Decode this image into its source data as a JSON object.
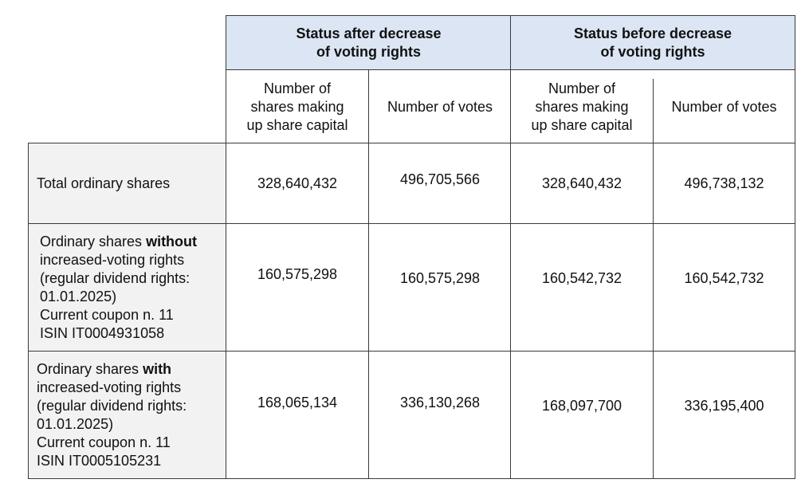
{
  "table": {
    "group_headers": {
      "after": [
        "Status after decrease",
        "of voting rights"
      ],
      "before": [
        "Status before decrease",
        "of voting rights"
      ]
    },
    "sub_headers": {
      "shares": [
        "Number of",
        "shares making",
        "up share capital"
      ],
      "votes": "Number of votes"
    },
    "rows": [
      {
        "label_lines": [
          "Total ordinary shares"
        ],
        "after_shares": "328,640,432",
        "after_votes": "496,705,566",
        "before_shares": "328,640,432",
        "before_votes": "496,738,132"
      },
      {
        "label_prefix": "Ordinary shares ",
        "label_bold": "without",
        "label_lines": [
          "increased-voting rights",
          "(regular dividend rights:",
          "01.01.2025)",
          "Current coupon n. 11",
          "ISIN IT0004931058"
        ],
        "after_shares": "160,575,298",
        "after_votes": "160,575,298",
        "before_shares": "160,542,732",
        "before_votes": "160,542,732"
      },
      {
        "label_prefix": "Ordinary shares ",
        "label_bold": "with",
        "label_lines": [
          "increased-voting rights",
          "(regular dividend rights:",
          "01.01.2025)",
          "Current coupon n. 11",
          "ISIN IT0005105231"
        ],
        "after_shares": "168,065,134",
        "after_votes": "336,130,268",
        "before_shares": "168,097,700",
        "before_votes": "336,195,400"
      }
    ]
  }
}
